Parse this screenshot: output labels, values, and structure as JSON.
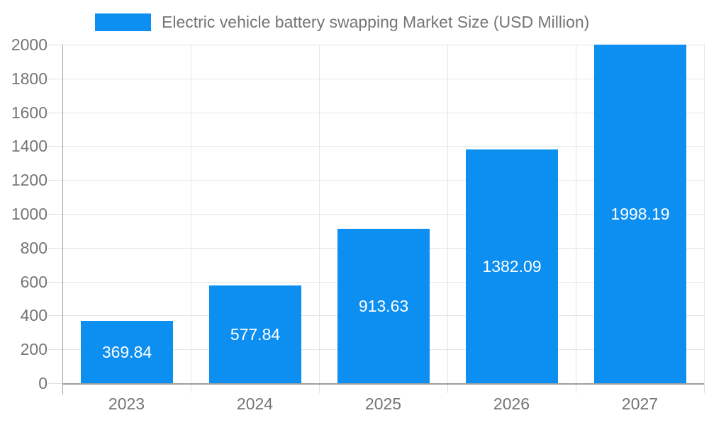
{
  "legend": {
    "series_label": "Electric vehicle battery swapping Market Size (USD Million)"
  },
  "chart_data": {
    "type": "bar",
    "title": "Electric vehicle battery swapping Market Size (USD Million)",
    "categories": [
      "2023",
      "2024",
      "2025",
      "2026",
      "2027"
    ],
    "values": [
      369.84,
      577.84,
      913.63,
      1382.09,
      1998.19
    ],
    "value_labels": [
      "369.84",
      "577.84",
      "913.63",
      "1382.09",
      "1998.19"
    ],
    "xlabel": "",
    "ylabel": "",
    "ylim": [
      0,
      2000
    ],
    "y_tick_step": 200,
    "y_tick_labels": [
      "0",
      "200",
      "400",
      "600",
      "800",
      "1000",
      "1200",
      "1400",
      "1600",
      "1800",
      "2000"
    ],
    "grid": true,
    "legend_position": "top",
    "colors": {
      "bar": "#0d8ff2",
      "bar_value_text": "#ffffff",
      "axis_text": "#757575",
      "gridline": "#e6e6e6",
      "tick": "#e0e0e0",
      "axis_line": "#9e9e9e",
      "background": "#ffffff"
    }
  }
}
